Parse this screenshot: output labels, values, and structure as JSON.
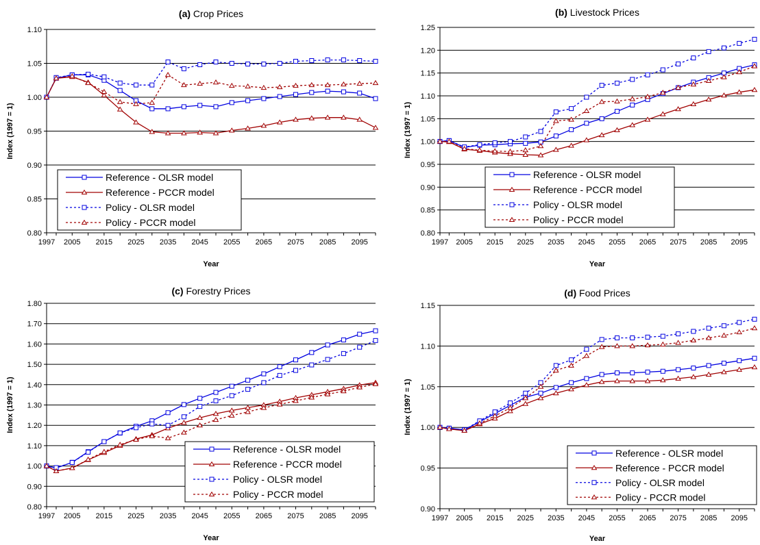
{
  "styles": {
    "ref_olsr": {
      "color": "#0000e0",
      "marker": "square",
      "dash": "none"
    },
    "ref_pccr": {
      "color": "#a00000",
      "marker": "triangle",
      "dash": "none"
    },
    "pol_olsr": {
      "color": "#0000e0",
      "marker": "square",
      "dash": "3,3"
    },
    "pol_pccr": {
      "color": "#a00000",
      "marker": "triangle",
      "dash": "3,3"
    }
  },
  "chart_data": [
    {
      "type": "line",
      "panel": "(a)",
      "title": "Crop Prices",
      "xlabel": "Year",
      "ylabel": "Index (1997 = 1)",
      "xlim": [
        1997,
        2100
      ],
      "ylim": [
        0.8,
        1.1
      ],
      "yticks": [
        "0.80",
        "0.85",
        "0.90",
        "0.95",
        "1.00",
        "1.05",
        "1.10"
      ],
      "xticks": [
        "1997",
        "2005",
        "2015",
        "2025",
        "2035",
        "2045",
        "2055",
        "2065",
        "2075",
        "2085",
        "2095"
      ],
      "legend_position": "bottom-left",
      "x": [
        1997,
        2000,
        2005,
        2010,
        2015,
        2020,
        2025,
        2030,
        2035,
        2040,
        2045,
        2050,
        2055,
        2060,
        2065,
        2070,
        2075,
        2080,
        2085,
        2090,
        2095,
        2100
      ],
      "series": [
        {
          "name": "Reference - OLSR model",
          "style": "ref_olsr",
          "values": [
            1.0,
            1.028,
            1.033,
            1.033,
            1.025,
            1.01,
            0.995,
            0.983,
            0.983,
            0.986,
            0.988,
            0.986,
            0.992,
            0.995,
            0.998,
            1.001,
            1.004,
            1.007,
            1.009,
            1.008,
            1.006,
            0.998
          ]
        },
        {
          "name": "Reference - PCCR model",
          "style": "ref_pccr",
          "values": [
            1.0,
            1.028,
            1.03,
            1.022,
            1.003,
            0.982,
            0.963,
            0.949,
            0.947,
            0.947,
            0.948,
            0.947,
            0.951,
            0.954,
            0.958,
            0.963,
            0.967,
            0.969,
            0.97,
            0.97,
            0.967,
            0.955
          ]
        },
        {
          "name": "Policy - OLSR model",
          "style": "pol_olsr",
          "values": [
            1.0,
            1.029,
            1.033,
            1.034,
            1.03,
            1.021,
            1.018,
            1.018,
            1.052,
            1.042,
            1.048,
            1.052,
            1.05,
            1.049,
            1.049,
            1.05,
            1.053,
            1.054,
            1.055,
            1.055,
            1.054,
            1.053
          ]
        },
        {
          "name": "Policy - PCCR model",
          "style": "pol_pccr",
          "values": [
            1.0,
            1.028,
            1.031,
            1.021,
            1.008,
            0.993,
            0.99,
            0.992,
            1.033,
            1.018,
            1.02,
            1.022,
            1.017,
            1.016,
            1.014,
            1.015,
            1.017,
            1.018,
            1.018,
            1.019,
            1.02,
            1.021
          ]
        }
      ]
    },
    {
      "type": "line",
      "panel": "(b)",
      "title": "Livestock  Prices",
      "xlabel": "Year",
      "ylabel": "Index (1997 = 1)",
      "xlim": [
        1997,
        2100
      ],
      "ylim": [
        0.8,
        1.25
      ],
      "yticks": [
        "0.80",
        "0.85",
        "0.90",
        "0.95",
        "1.00",
        "1.05",
        "1.10",
        "1.15",
        "1.20",
        "1.25"
      ],
      "xticks": [
        "1997",
        "2005",
        "2015",
        "2025",
        "2035",
        "2045",
        "2055",
        "2065",
        "2075",
        "2085",
        "2095"
      ],
      "legend_position": "bottom-right",
      "x": [
        1997,
        2000,
        2005,
        2010,
        2015,
        2020,
        2025,
        2030,
        2035,
        2040,
        2045,
        2050,
        2055,
        2060,
        2065,
        2070,
        2075,
        2080,
        2085,
        2090,
        2095,
        2100
      ],
      "series": [
        {
          "name": "Reference - OLSR model",
          "style": "ref_olsr",
          "values": [
            1.0,
            1.002,
            0.987,
            0.992,
            0.993,
            0.995,
            0.996,
            0.999,
            1.012,
            1.026,
            1.04,
            1.05,
            1.066,
            1.08,
            1.092,
            1.105,
            1.118,
            1.13,
            1.14,
            1.15,
            1.16,
            1.168
          ]
        },
        {
          "name": "Reference - PCCR model",
          "style": "ref_pccr",
          "values": [
            1.0,
            0.999,
            0.983,
            0.98,
            0.976,
            0.973,
            0.971,
            0.97,
            0.982,
            0.991,
            1.003,
            1.014,
            1.025,
            1.036,
            1.048,
            1.06,
            1.071,
            1.082,
            1.092,
            1.101,
            1.108,
            1.113
          ]
        },
        {
          "name": "Policy - OLSR model",
          "style": "pol_olsr",
          "values": [
            1.0,
            1.002,
            0.988,
            0.993,
            0.997,
            1.0,
            1.01,
            1.022,
            1.065,
            1.072,
            1.097,
            1.123,
            1.128,
            1.136,
            1.146,
            1.157,
            1.17,
            1.183,
            1.197,
            1.205,
            1.215,
            1.224
          ]
        },
        {
          "name": "Policy - PCCR model",
          "style": "pol_pccr",
          "values": [
            1.0,
            1.0,
            0.984,
            0.981,
            0.979,
            0.978,
            0.981,
            0.99,
            1.045,
            1.048,
            1.067,
            1.087,
            1.088,
            1.093,
            1.098,
            1.107,
            1.118,
            1.125,
            1.133,
            1.141,
            1.152,
            1.165
          ]
        }
      ]
    },
    {
      "type": "line",
      "panel": "(c)",
      "title": "Forestry Prices",
      "xlabel": "Year",
      "ylabel": "Index (1997 = 1)",
      "xlim": [
        1997,
        2100
      ],
      "ylim": [
        0.8,
        1.8
      ],
      "yticks": [
        "0.80",
        "0.90",
        "1.00",
        "1.10",
        "1.20",
        "1.30",
        "1.40",
        "1.50",
        "1.60",
        "1.70",
        "1.80"
      ],
      "xticks": [
        "1997",
        "2005",
        "2015",
        "2025",
        "2035",
        "2045",
        "2055",
        "2065",
        "2075",
        "2085",
        "2095"
      ],
      "legend_position": "bottom-right",
      "x": [
        1997,
        2000,
        2005,
        2010,
        2015,
        2020,
        2025,
        2030,
        2035,
        2040,
        2045,
        2050,
        2055,
        2060,
        2065,
        2070,
        2075,
        2080,
        2085,
        2090,
        2095,
        2100
      ],
      "series": [
        {
          "name": "Reference - OLSR model",
          "style": "ref_olsr",
          "values": [
            1.0,
            0.99,
            1.018,
            1.07,
            1.12,
            1.162,
            1.195,
            1.222,
            1.262,
            1.302,
            1.333,
            1.362,
            1.392,
            1.422,
            1.453,
            1.488,
            1.522,
            1.558,
            1.595,
            1.62,
            1.648,
            1.665
          ]
        },
        {
          "name": "Reference - PCCR model",
          "style": "ref_pccr",
          "values": [
            1.0,
            0.975,
            0.99,
            1.03,
            1.065,
            1.1,
            1.133,
            1.153,
            1.186,
            1.213,
            1.237,
            1.257,
            1.273,
            1.287,
            1.3,
            1.317,
            1.335,
            1.35,
            1.365,
            1.38,
            1.398,
            1.41
          ]
        },
        {
          "name": "Policy - OLSR model",
          "style": "pol_olsr",
          "values": [
            1.0,
            0.992,
            1.017,
            1.068,
            1.12,
            1.163,
            1.188,
            1.207,
            1.2,
            1.242,
            1.293,
            1.32,
            1.346,
            1.377,
            1.41,
            1.445,
            1.47,
            1.497,
            1.524,
            1.553,
            1.584,
            1.617
          ]
        },
        {
          "name": "Policy - PCCR model",
          "style": "pol_pccr",
          "values": [
            1.0,
            0.975,
            0.99,
            1.032,
            1.07,
            1.105,
            1.13,
            1.147,
            1.137,
            1.165,
            1.2,
            1.227,
            1.248,
            1.266,
            1.286,
            1.303,
            1.32,
            1.337,
            1.353,
            1.368,
            1.387,
            1.403
          ]
        }
      ]
    },
    {
      "type": "line",
      "panel": "(d)",
      "title": "Food Prices",
      "xlabel": "Year",
      "ylabel": "Index (1997 = 1)",
      "xlim": [
        1997,
        2100
      ],
      "ylim": [
        0.9,
        1.15
      ],
      "yticks": [
        "0.90",
        "0.95",
        "1.00",
        "1.05",
        "1.10",
        "1.15"
      ],
      "xticks": [
        "1997",
        "2005",
        "2015",
        "2025",
        "2035",
        "2045",
        "2055",
        "2065",
        "2075",
        "2085",
        "2095"
      ],
      "legend_position": "bottom-right",
      "x": [
        1997,
        2000,
        2005,
        2010,
        2015,
        2020,
        2025,
        2030,
        2035,
        2040,
        2045,
        2050,
        2055,
        2060,
        2065,
        2070,
        2075,
        2080,
        2085,
        2090,
        2095,
        2100
      ],
      "series": [
        {
          "name": "Reference - OLSR model",
          "style": "ref_olsr",
          "values": [
            1.0,
            0.999,
            0.997,
            1.007,
            1.017,
            1.027,
            1.037,
            1.042,
            1.049,
            1.055,
            1.06,
            1.065,
            1.067,
            1.067,
            1.068,
            1.069,
            1.071,
            1.073,
            1.076,
            1.079,
            1.082,
            1.085
          ]
        },
        {
          "name": "Reference - PCCR model",
          "style": "ref_pccr",
          "values": [
            1.0,
            0.998,
            0.996,
            1.004,
            1.011,
            1.02,
            1.029,
            1.036,
            1.042,
            1.047,
            1.052,
            1.056,
            1.057,
            1.057,
            1.057,
            1.058,
            1.06,
            1.062,
            1.065,
            1.068,
            1.071,
            1.074
          ]
        },
        {
          "name": "Policy - OLSR model",
          "style": "pol_olsr",
          "values": [
            1.0,
            0.999,
            0.997,
            1.008,
            1.019,
            1.03,
            1.042,
            1.055,
            1.076,
            1.083,
            1.096,
            1.108,
            1.11,
            1.11,
            1.111,
            1.112,
            1.115,
            1.118,
            1.122,
            1.125,
            1.129,
            1.133
          ]
        },
        {
          "name": "Policy - PCCR model",
          "style": "pol_pccr",
          "values": [
            1.0,
            0.998,
            0.996,
            1.005,
            1.014,
            1.024,
            1.036,
            1.05,
            1.07,
            1.076,
            1.088,
            1.099,
            1.1,
            1.1,
            1.101,
            1.102,
            1.104,
            1.107,
            1.11,
            1.113,
            1.117,
            1.122
          ]
        }
      ]
    }
  ]
}
